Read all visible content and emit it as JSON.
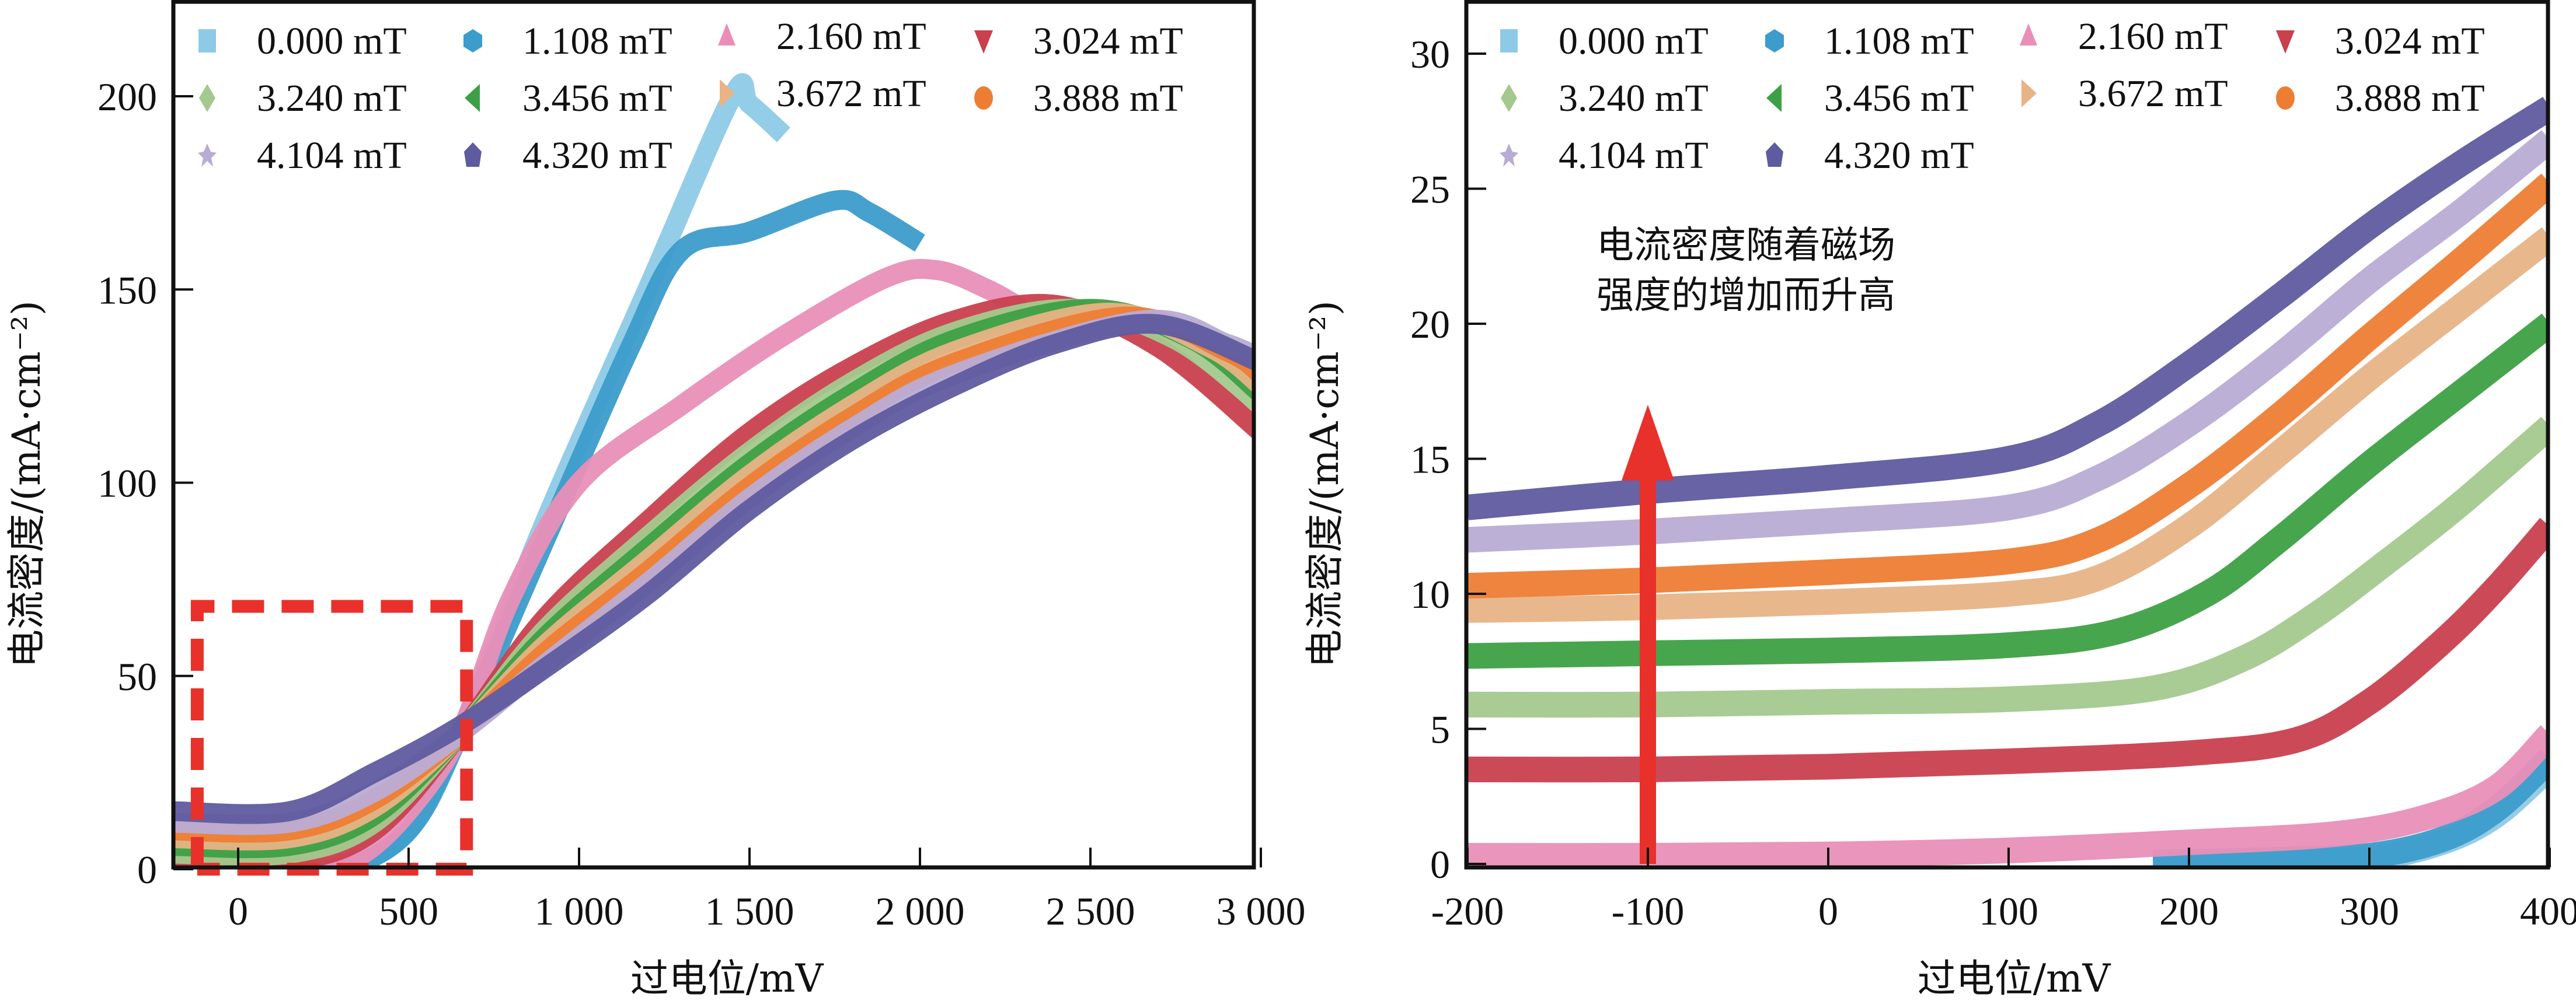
{
  "chart_data": [
    {
      "type": "line",
      "panel": "left",
      "title": "",
      "xlabel": "过电位/mV",
      "ylabel": "电流密度/(mA·cm⁻²)",
      "xlim": [
        -190,
        3000
      ],
      "ylim": [
        -3,
        227
      ],
      "xticks": [
        0,
        500,
        1000,
        1500,
        2000,
        2500,
        3000
      ],
      "xtick_labels": [
        "0",
        "500",
        "1 000",
        "1 500",
        "2 000",
        "2 500",
        "3 000"
      ],
      "yticks": [
        0,
        50,
        100,
        150,
        200
      ],
      "ytick_labels": [
        "0",
        "50",
        "100",
        "150",
        "200"
      ],
      "grid": false,
      "legend_position": "top-left",
      "annotation_box": {
        "x": [
          -120,
          670
        ],
        "y": [
          0,
          68
        ],
        "color": "#e8312b",
        "style": "dashed"
      },
      "series": [
        {
          "name": "0.000 mT",
          "color": "#8ecae6",
          "marker": "square",
          "x": [
            -190,
            100,
            300,
            500,
            650,
            900,
            1200,
            1450,
            1500,
            1600
          ],
          "y": [
            0,
            0,
            0,
            10,
            35,
            90,
            150,
            200,
            198,
            190
          ]
        },
        {
          "name": "1.108 mT",
          "color": "#3c9ccb",
          "marker": "hexagon",
          "x": [
            -190,
            100,
            300,
            500,
            650,
            900,
            1150,
            1300,
            1500,
            1750,
            1850,
            2000
          ],
          "y": [
            0,
            0,
            0,
            10,
            35,
            85,
            135,
            160,
            165,
            173,
            170,
            162
          ]
        },
        {
          "name": "2.160 mT",
          "color": "#e98fb7",
          "marker": "triangle-up",
          "x": [
            -190,
            200,
            350,
            500,
            650,
            800,
            1000,
            1300,
            1600,
            1900,
            2050,
            2200,
            2300
          ],
          "y": [
            0,
            0,
            3,
            15,
            35,
            70,
            100,
            120,
            138,
            153,
            155,
            150,
            145
          ]
        },
        {
          "name": "3.024 mT",
          "color": "#c9404e",
          "marker": "triangle-down",
          "x": [
            -190,
            150,
            400,
            650,
            900,
            1200,
            1500,
            1800,
            2100,
            2400,
            2700,
            3000
          ],
          "y": [
            2,
            2,
            10,
            35,
            65,
            90,
            113,
            130,
            142,
            146,
            135,
            113
          ]
        },
        {
          "name": "3.240 mT",
          "color": "#a3c98e",
          "marker": "diamond",
          "x": [
            -190,
            150,
            400,
            650,
            900,
            1200,
            1500,
            1800,
            2100,
            2450,
            2750,
            3000
          ],
          "y": [
            4,
            4,
            12,
            35,
            62,
            86,
            108,
            126,
            139,
            145,
            137,
            120
          ]
        },
        {
          "name": "3.456 mT",
          "color": "#3da045",
          "marker": "triangle-left",
          "x": [
            -190,
            150,
            400,
            650,
            900,
            1200,
            1500,
            1800,
            2100,
            2500,
            2800,
            3000
          ],
          "y": [
            6,
            6,
            14,
            35,
            60,
            83,
            105,
            123,
            137,
            145,
            137,
            123
          ]
        },
        {
          "name": "3.672 mT",
          "color": "#e8b386",
          "marker": "triangle-right",
          "x": [
            -190,
            150,
            400,
            650,
            900,
            1200,
            1500,
            1800,
            2100,
            2550,
            2850,
            3000
          ],
          "y": [
            8,
            8,
            16,
            35,
            58,
            80,
            102,
            120,
            134,
            144,
            135,
            125
          ]
        },
        {
          "name": "3.888 mT",
          "color": "#ee7d34",
          "marker": "circle",
          "x": [
            -190,
            150,
            400,
            650,
            900,
            1200,
            1500,
            1800,
            2100,
            2600,
            2900,
            3000
          ],
          "y": [
            10,
            10,
            18,
            35,
            56,
            77,
            99,
            117,
            131,
            143,
            134,
            128
          ]
        },
        {
          "name": "4.104 mT",
          "color": "#b9acd4",
          "marker": "star",
          "x": [
            -190,
            150,
            400,
            650,
            900,
            1200,
            1500,
            1800,
            2100,
            2650,
            2900,
            3000
          ],
          "y": [
            12,
            12,
            20,
            35,
            53,
            74,
            96,
            114,
            128,
            142,
            136,
            132
          ]
        },
        {
          "name": "4.320 mT",
          "color": "#5f5b9f",
          "marker": "pentagon",
          "x": [
            -190,
            150,
            400,
            650,
            900,
            1200,
            1500,
            1800,
            2100,
            2400,
            2700,
            3000
          ],
          "y": [
            15,
            15,
            25,
            37,
            52,
            71,
            93,
            111,
            125,
            136,
            141,
            131
          ]
        }
      ]
    },
    {
      "type": "line",
      "panel": "right",
      "title": "",
      "xlabel": "过电位/mV",
      "ylabel": "电流密度/(mA·cm⁻²)",
      "xlim": [
        -200,
        400
      ],
      "ylim": [
        0,
        31.6
      ],
      "xticks": [
        -200,
        -100,
        0,
        100,
        200,
        300,
        400
      ],
      "xtick_labels": [
        "-200",
        "-100",
        "0",
        "100",
        "200",
        "300",
        "400"
      ],
      "yticks": [
        0,
        5,
        10,
        15,
        20,
        25,
        30
      ],
      "ytick_labels": [
        "0",
        "5",
        "10",
        "15",
        "20",
        "25",
        "30"
      ],
      "grid": false,
      "legend_position": "top-left",
      "annotation": {
        "text_lines": [
          "电流密度随着磁场",
          "强度的增加而升高"
        ],
        "arrow": {
          "x": -100,
          "y_from": 0,
          "y_to": 17,
          "color": "#e8312b"
        }
      },
      "series": [
        {
          "name": "0.000 mT",
          "color": "#8ecae6",
          "marker": "square",
          "x": [
            180,
            250,
            300,
            340,
            370,
            400
          ],
          "y": [
            0,
            0.1,
            0.2,
            0.8,
            1.8,
            3.6
          ]
        },
        {
          "name": "1.108 mT",
          "color": "#3c9ccb",
          "marker": "hexagon",
          "x": [
            180,
            250,
            300,
            340,
            370,
            400
          ],
          "y": [
            0.05,
            0.15,
            0.3,
            0.9,
            2.0,
            3.9
          ]
        },
        {
          "name": "2.160 mT",
          "color": "#e98fb7",
          "marker": "triangle-up",
          "x": [
            -200,
            -100,
            0,
            100,
            200,
            280,
            330,
            370,
            400
          ],
          "y": [
            0.3,
            0.3,
            0.35,
            0.5,
            0.8,
            1.1,
            1.7,
            2.8,
            4.8
          ]
        },
        {
          "name": "3.024 mT",
          "color": "#c9404e",
          "marker": "triangle-down",
          "x": [
            -200,
            -100,
            0,
            100,
            200,
            260,
            300,
            340,
            370,
            400
          ],
          "y": [
            3.5,
            3.5,
            3.6,
            3.8,
            4.1,
            4.6,
            6.0,
            8.2,
            10.2,
            12.5
          ]
        },
        {
          "name": "3.240 mT",
          "color": "#a3c98e",
          "marker": "diamond",
          "x": [
            -200,
            -100,
            0,
            100,
            180,
            230,
            270,
            310,
            350,
            400
          ],
          "y": [
            5.9,
            5.9,
            6.0,
            6.1,
            6.5,
            7.6,
            9.2,
            11.2,
            13.3,
            16.2
          ]
        },
        {
          "name": "3.456 mT",
          "color": "#3da045",
          "marker": "triangle-left",
          "x": [
            -200,
            -100,
            0,
            100,
            160,
            210,
            250,
            300,
            350,
            400
          ],
          "y": [
            7.7,
            7.8,
            7.9,
            8.1,
            8.6,
            10.0,
            12.0,
            14.8,
            17.4,
            20.0
          ]
        },
        {
          "name": "3.672 mT",
          "color": "#e8b386",
          "marker": "triangle-right",
          "x": [
            -200,
            -100,
            0,
            100,
            150,
            200,
            250,
            300,
            350,
            400
          ],
          "y": [
            9.4,
            9.5,
            9.7,
            10.0,
            10.6,
            12.5,
            15.2,
            18.0,
            20.6,
            23.2
          ]
        },
        {
          "name": "3.888 mT",
          "color": "#ee7d34",
          "marker": "circle",
          "x": [
            -200,
            -100,
            0,
            100,
            150,
            200,
            250,
            300,
            350,
            400
          ],
          "y": [
            10.3,
            10.5,
            10.8,
            11.2,
            12.0,
            14.0,
            16.6,
            19.5,
            22.3,
            25.2
          ]
        },
        {
          "name": "4.104 mT",
          "color": "#b9acd4",
          "marker": "star",
          "x": [
            -200,
            -100,
            0,
            100,
            150,
            200,
            250,
            300,
            350,
            400
          ],
          "y": [
            12.0,
            12.3,
            12.7,
            13.2,
            14.3,
            16.3,
            18.8,
            21.6,
            24.1,
            26.8
          ]
        },
        {
          "name": "4.320 mT",
          "color": "#5f5b9f",
          "marker": "pentagon",
          "x": [
            -200,
            -100,
            0,
            100,
            150,
            200,
            250,
            300,
            350,
            400
          ],
          "y": [
            13.2,
            13.8,
            14.3,
            15.0,
            16.3,
            18.5,
            21.0,
            23.6,
            25.9,
            28.0
          ]
        }
      ]
    }
  ]
}
